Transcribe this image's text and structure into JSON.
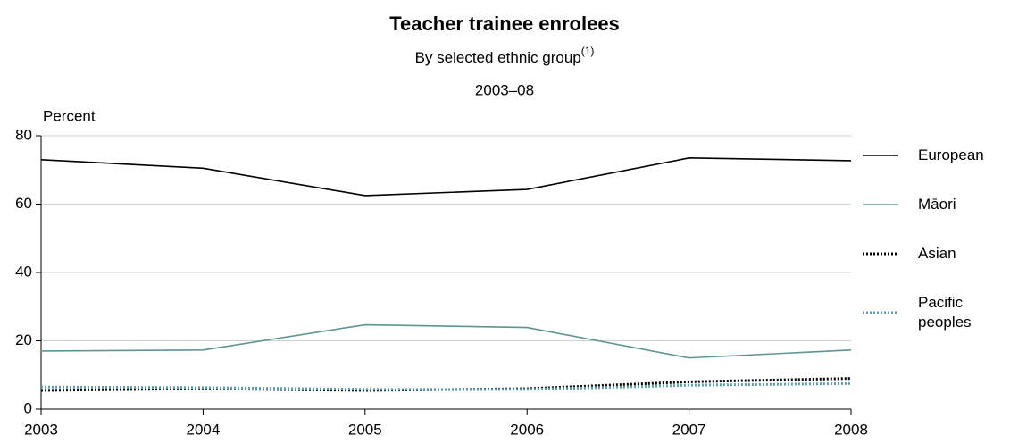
{
  "chart_data": {
    "type": "line",
    "title": "Teacher trainee enrolees",
    "subtitle": "By selected ethnic group",
    "subtitle_note": "(1)",
    "period": "2003–08",
    "y_label": "Percent",
    "x": [
      2003,
      2004,
      2005,
      2006,
      2007,
      2008
    ],
    "xlim": [
      2003,
      2008
    ],
    "xticks": [
      2003,
      2004,
      2005,
      2006,
      2007,
      2008
    ],
    "ylim": [
      0,
      80
    ],
    "yticks": [
      0,
      20,
      40,
      60,
      80
    ],
    "grid": true,
    "series": [
      {
        "name": "European",
        "color": "#000000",
        "dash": "solid",
        "values": [
          73,
          70.5,
          62.5,
          64.3,
          73.5,
          72.7
        ]
      },
      {
        "name": "Māori",
        "color": "#5f9494",
        "dash": "solid",
        "values": [
          17,
          17.3,
          24.7,
          23.9,
          15,
          17.3
        ]
      },
      {
        "name": "Asian",
        "color": "#000000",
        "dash": "dotted",
        "values": [
          5.5,
          6,
          5.5,
          6,
          8,
          9
        ]
      },
      {
        "name": "Pacific peoples",
        "color": "#5f9ea8",
        "dash": "dotted",
        "values": [
          6.5,
          6.3,
          5.8,
          5.8,
          7,
          7.5
        ]
      }
    ]
  }
}
